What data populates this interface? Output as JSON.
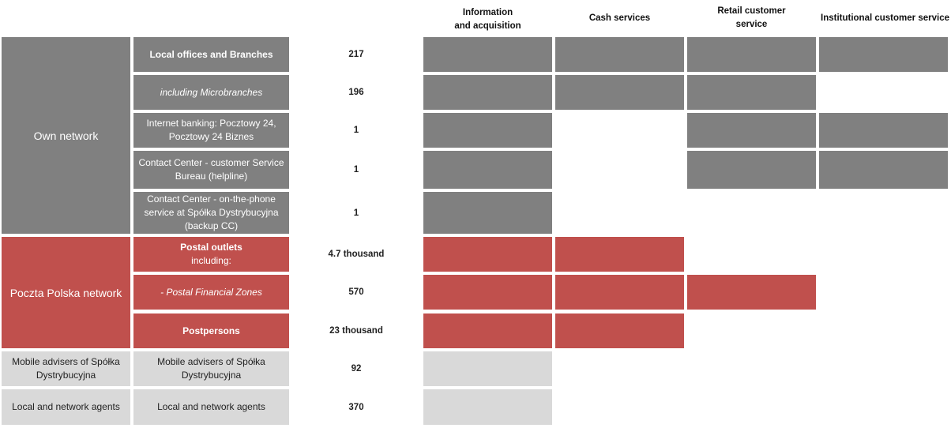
{
  "headers": [
    {
      "line1": "Information",
      "line2": "and acquisition"
    },
    {
      "line1": "Cash services",
      "line2": ""
    },
    {
      "line1": "Retail customer",
      "line2": "service"
    },
    {
      "line1": "Institutional customer service",
      "line2": ""
    }
  ],
  "groups": {
    "own": "Own  network",
    "poczta": "Poczta Polska network",
    "mobile": "Mobile advisers of Spółka Dystrybucyjna",
    "agents": "Local and network agents"
  },
  "rows": [
    {
      "label": "Local offices and Branches",
      "value": "217"
    },
    {
      "label": "including Microbranches",
      "value": "196"
    },
    {
      "label": "Internet banking: Pocztowy 24, Pocztowy 24 Biznes",
      "value": "1"
    },
    {
      "label": "Contact Center - customer Service Bureau (helpline)",
      "value": "1"
    },
    {
      "label": "Contact Center -  on-the-phone service at Spółka Dystrybucyjna (backup CC)",
      "value": "1"
    },
    {
      "label": "Postal outlets",
      "label2": "including:",
      "value": "4.7 thousand"
    },
    {
      "label": "- Postal Financial Zones",
      "value": "570"
    },
    {
      "label": "Postpersons",
      "value": "23 thousand"
    },
    {
      "label": "Mobile advisers of Spółka Dystrybucyjna",
      "value": "92"
    },
    {
      "label": "Local and network agents",
      "value": "370"
    }
  ],
  "colors": {
    "own": "#808080",
    "poczta": "#c0504d",
    "other": "#d9d9d9"
  }
}
